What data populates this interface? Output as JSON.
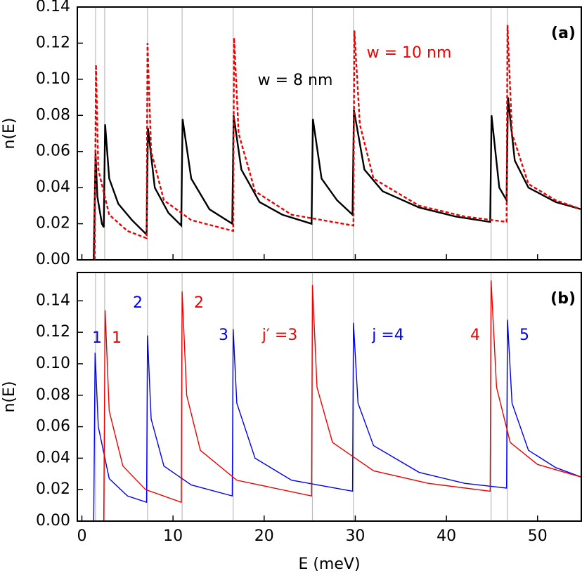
{
  "chart_data": [
    {
      "type": "line",
      "label": "(a)",
      "ylabel": "n(E)",
      "xlim": [
        -0.5,
        54.8
      ],
      "ylim": [
        0,
        0.14
      ],
      "yticks": [
        {
          "value": 0,
          "label": "0.00"
        },
        {
          "value": 0.02,
          "label": "0.02"
        },
        {
          "value": 0.04,
          "label": "0.04"
        },
        {
          "value": 0.06,
          "label": "0.06"
        },
        {
          "value": 0.08,
          "label": "0.08"
        },
        {
          "value": 0.1,
          "label": "0.10"
        },
        {
          "value": 0.12,
          "label": "0.12"
        },
        {
          "value": 0.14,
          "label": "0.14"
        }
      ],
      "vlines": [
        1.5,
        2.5,
        7.2,
        11.0,
        16.6,
        25.3,
        29.8,
        44.9,
        46.7
      ],
      "series": [
        {
          "name": "w = 8 nm",
          "color": "#000000",
          "dashed": false,
          "x": [
            1.3,
            1.5,
            1.7,
            2.2,
            2.4,
            2.55,
            3,
            4,
            5.5,
            7.1,
            7.25,
            8,
            9.5,
            10.9,
            11.05,
            12,
            14,
            16.5,
            16.65,
            17.5,
            19.5,
            22,
            25.2,
            25.35,
            26.3,
            28,
            29.7,
            29.85,
            31,
            33,
            37,
            41,
            44.8,
            44.95,
            45.8,
            46.6,
            46.75,
            47.5,
            49,
            52,
            54.8
          ],
          "values": [
            0,
            0.059,
            0.035,
            0.02,
            0.018,
            0.075,
            0.045,
            0.031,
            0.022,
            0.014,
            0.073,
            0.04,
            0.026,
            0.019,
            0.078,
            0.045,
            0.028,
            0.02,
            0.08,
            0.05,
            0.032,
            0.025,
            0.02,
            0.078,
            0.045,
            0.033,
            0.025,
            0.083,
            0.05,
            0.038,
            0.029,
            0.024,
            0.021,
            0.08,
            0.04,
            0.033,
            0.09,
            0.055,
            0.04,
            0.032,
            0.028
          ]
        },
        {
          "name": "w = 10 nm",
          "color": "#ee0000",
          "dashed": true,
          "x": [
            1.4,
            1.55,
            1.8,
            3,
            5,
            7.1,
            7.2,
            7.6,
            9,
            12,
            16.6,
            16.7,
            17.2,
            19,
            23,
            29.8,
            29.9,
            30.5,
            32,
            37,
            42,
            46.6,
            46.7,
            47.2,
            49,
            52,
            54.8
          ],
          "values": [
            0,
            0.108,
            0.05,
            0.025,
            0.016,
            0.012,
            0.12,
            0.06,
            0.033,
            0.022,
            0.016,
            0.123,
            0.07,
            0.038,
            0.025,
            0.019,
            0.127,
            0.075,
            0.045,
            0.03,
            0.024,
            0.021,
            0.13,
            0.07,
            0.042,
            0.033,
            0.028
          ]
        }
      ]
    },
    {
      "type": "line",
      "label": "(b)",
      "ylabel": "n(E)",
      "xlabel": "E (meV)",
      "xlim": [
        -0.5,
        54.8
      ],
      "ylim": [
        0,
        0.158
      ],
      "xticks": [
        0,
        10,
        20,
        30,
        40,
        50
      ],
      "yticks": [
        {
          "value": 0,
          "label": "0.00"
        },
        {
          "value": 0.02,
          "label": "0.02"
        },
        {
          "value": 0.04,
          "label": "0.04"
        },
        {
          "value": 0.06,
          "label": "0.06"
        },
        {
          "value": 0.08,
          "label": "0.08"
        },
        {
          "value": 0.1,
          "label": "0.10"
        },
        {
          "value": 0.12,
          "label": "0.12"
        },
        {
          "value": 0.14,
          "label": "0.14"
        }
      ],
      "vlines": [
        1.5,
        2.5,
        7.2,
        11.0,
        16.6,
        25.3,
        29.8,
        44.9,
        46.7
      ],
      "series": [
        {
          "color": "#0000ee",
          "dashed": false,
          "x": [
            1.3,
            1.45,
            1.8,
            3,
            5,
            7.1,
            7.2,
            7.6,
            9,
            12,
            16.5,
            16.6,
            17,
            19,
            23,
            29.7,
            29.8,
            30.3,
            32,
            37,
            42,
            46.6,
            46.7,
            47.2,
            49,
            52,
            54.8
          ],
          "values": [
            0,
            0.107,
            0.06,
            0.027,
            0.016,
            0.012,
            0.118,
            0.065,
            0.035,
            0.023,
            0.016,
            0.122,
            0.075,
            0.04,
            0.026,
            0.019,
            0.126,
            0.075,
            0.048,
            0.031,
            0.024,
            0.021,
            0.128,
            0.075,
            0.045,
            0.034,
            0.028
          ]
        },
        {
          "color": "#ee0000",
          "dashed": false,
          "x": [
            2.4,
            2.55,
            3,
            4.5,
            7,
            10.9,
            11.0,
            11.5,
            13,
            17,
            25.2,
            25.3,
            25.8,
            27.5,
            32,
            38,
            44.8,
            44.9,
            45.5,
            47,
            50,
            54.8
          ],
          "values": [
            0,
            0.134,
            0.07,
            0.035,
            0.02,
            0.012,
            0.146,
            0.08,
            0.045,
            0.026,
            0.016,
            0.15,
            0.085,
            0.05,
            0.032,
            0.024,
            0.019,
            0.153,
            0.085,
            0.05,
            0.036,
            0.028
          ]
        }
      ],
      "annotations": [
        {
          "text": "1",
          "color": "#0000ee"
        },
        {
          "text": "1",
          "color": "#ee0000"
        },
        {
          "text": "2",
          "color": "#0000ee"
        },
        {
          "text": "2",
          "color": "#ee0000"
        },
        {
          "text": "3",
          "color": "#0000ee"
        },
        {
          "text": "j′ =3",
          "color": "#ee0000"
        },
        {
          "text": "j =4",
          "color": "#0000ee"
        },
        {
          "text": "4",
          "color": "#ee0000"
        },
        {
          "text": "5",
          "color": "#0000ee"
        }
      ]
    }
  ]
}
